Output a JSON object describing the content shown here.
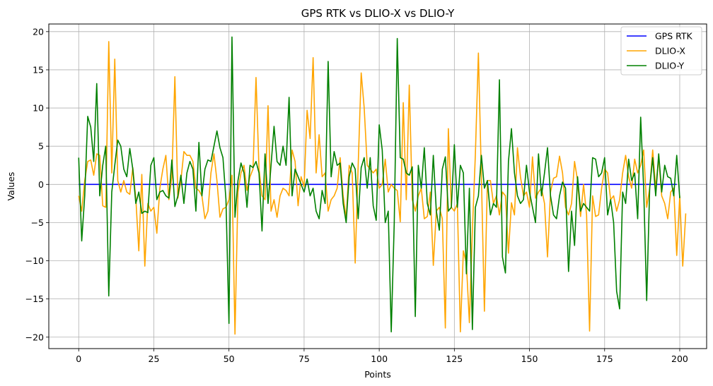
{
  "chart_data": {
    "type": "line",
    "title": "GPS RTK vs DLIO-X vs DLIO-Y",
    "xlabel": "Points",
    "ylabel": "Values",
    "xlim": [
      -9.95,
      208.95
    ],
    "ylim": [
      -21.5,
      21.0
    ],
    "xticks": [
      0,
      25,
      50,
      75,
      100,
      125,
      150,
      175,
      200
    ],
    "yticks": [
      -20,
      -15,
      -10,
      -5,
      0,
      5,
      10,
      15,
      20
    ],
    "grid": true,
    "legend_position": "top-right",
    "colors": {
      "gps_rtk": "#0000ff",
      "dlio_x": "#ffa500",
      "dlio_y": "#008000",
      "grid": "#b0b0b0"
    },
    "series": [
      {
        "name": "GPS RTK",
        "color": "#0000ff",
        "y": [
          0,
          0,
          0,
          0,
          0,
          0,
          0,
          0,
          0,
          0,
          0,
          0,
          0,
          0,
          0,
          0,
          0,
          0,
          0,
          0,
          0,
          0,
          0,
          0,
          0,
          0,
          0,
          0,
          0,
          0,
          0,
          0,
          0,
          0,
          0,
          0,
          0,
          0,
          0,
          0,
          0,
          0,
          0,
          0,
          0,
          0,
          0,
          0,
          0,
          0,
          0,
          0,
          0,
          0,
          0,
          0,
          0,
          0,
          0,
          0,
          0,
          0,
          0,
          0,
          0,
          0,
          0,
          0,
          0,
          0,
          0,
          0,
          0,
          0,
          0,
          0,
          0,
          0,
          0,
          0,
          0,
          0,
          0,
          0,
          0,
          0,
          0,
          0,
          0,
          0,
          0,
          0,
          0,
          0,
          0,
          0,
          0,
          0,
          0,
          0,
          0,
          0,
          0,
          0,
          0,
          0,
          0,
          0,
          0,
          0,
          0,
          0,
          0,
          0,
          0,
          0,
          0,
          0,
          0,
          0,
          0,
          0,
          0,
          0,
          0,
          0,
          0,
          0,
          0,
          0,
          0,
          0,
          0,
          0,
          0,
          0,
          0,
          0,
          0,
          0,
          0,
          0,
          0,
          0,
          0,
          0,
          0,
          0,
          0,
          0,
          0,
          0,
          0,
          0,
          0,
          0,
          0,
          0,
          0,
          0,
          0,
          0,
          0,
          0,
          0,
          0,
          0,
          0,
          0,
          0,
          0,
          0,
          0,
          0,
          0,
          0,
          0,
          0,
          0,
          0,
          0,
          0,
          0,
          0,
          0,
          0,
          0,
          0,
          0,
          0,
          0,
          0,
          0,
          0,
          0,
          0,
          0,
          0,
          0,
          0
        ]
      },
      {
        "name": "DLIO-X",
        "color": "#ffa500",
        "y": [
          -1.5,
          -3.5,
          0.5,
          3.0,
          3.2,
          1.2,
          4.0,
          3.8,
          -2.8,
          -3.0,
          18.7,
          1.5,
          16.4,
          0.5,
          -1.0,
          0.5,
          -1.0,
          -1.3,
          2.2,
          -1.8,
          -8.7,
          1.3,
          -10.7,
          -2.5,
          -3.5,
          -3.0,
          -6.4,
          -0.5,
          2.0,
          3.8,
          -2.0,
          1.0,
          14.1,
          -1.8,
          0.5,
          4.3,
          3.8,
          3.8,
          3.0,
          -0.5,
          -0.8,
          -1.5,
          -4.5,
          -3.5,
          1.5,
          4.0,
          0.5,
          -4.3,
          -3.2,
          -3.0,
          -2.0,
          1.2,
          -19.6,
          -1.0,
          1.5,
          2.5,
          -0.8,
          1.0,
          2.0,
          14.0,
          2.0,
          -1.5,
          -2.0,
          10.3,
          -3.5,
          -2.0,
          -4.3,
          -1.5,
          -0.5,
          -0.8,
          -1.5,
          4.5,
          3.0,
          -2.8,
          1.0,
          -0.3,
          9.7,
          6.0,
          16.6,
          1.5,
          6.5,
          1.0,
          1.5,
          -3.5,
          -2.0,
          -1.5,
          -0.5,
          3.5,
          -1.5,
          -4.5,
          2.5,
          1.5,
          -10.3,
          2.5,
          14.6,
          10.0,
          2.5,
          2.0,
          1.5,
          2.0,
          -0.5,
          0.0,
          3.3,
          -1.0,
          0.0,
          -0.5,
          -0.8,
          -4.9,
          10.7,
          -2.0,
          13.0,
          -2.0,
          -3.5,
          -1.5,
          -0.5,
          -4.5,
          -4.2,
          -1.0,
          -10.6,
          -3.5,
          -3.0,
          -4.5,
          -18.8,
          7.3,
          -3.0,
          -3.5,
          -2.5,
          -19.3,
          -8.7,
          -10.3,
          -18.1,
          -6.0,
          4.0,
          17.2,
          1.0,
          -16.6,
          0.5,
          0.5,
          -2.5,
          -1.5,
          -4.0,
          -1.0,
          -1.5,
          -9.0,
          -2.4,
          -4.0,
          4.8,
          1.0,
          -1.5,
          -1.0,
          -3.0,
          3.6,
          -1.8,
          -1.0,
          -0.5,
          -2.5,
          -9.5,
          -1.0,
          0.8,
          1.0,
          3.7,
          1.5,
          -3.0,
          -4.0,
          -2.5,
          3.0,
          0.5,
          -4.2,
          0.0,
          -4.0,
          -19.2,
          -1.5,
          -4.2,
          -4.0,
          -0.5,
          2.0,
          1.5,
          -2.0,
          -1.5,
          -3.5,
          -2.0,
          1.5,
          3.8,
          1.0,
          -0.5,
          3.3,
          1.5,
          2.5,
          4.5,
          -3.0,
          -0.5,
          4.5,
          -0.5,
          3.5,
          -1.5,
          -2.5,
          -4.5,
          -1.0,
          -0.5,
          -9.3,
          -1.5,
          -10.7,
          -3.8
        ]
      },
      {
        "name": "DLIO-Y",
        "color": "#008000",
        "y": [
          3.5,
          -7.4,
          -1.5,
          8.9,
          7.5,
          3.0,
          13.2,
          -1.5,
          2.5,
          5.0,
          -14.6,
          -1.0,
          2.5,
          5.8,
          5.0,
          2.0,
          1.0,
          4.7,
          2.0,
          -2.5,
          -1.0,
          -3.8,
          -3.5,
          -3.7,
          2.5,
          3.5,
          -2.0,
          -1.0,
          -0.8,
          -1.5,
          -1.8,
          3.2,
          -2.9,
          -1.5,
          1.2,
          -2.5,
          1.5,
          3.0,
          2.0,
          -3.5,
          5.5,
          -1.5,
          2.0,
          3.2,
          3.0,
          5.0,
          7.0,
          4.8,
          3.5,
          -2.0,
          -18.2,
          19.3,
          -4.3,
          0.5,
          2.8,
          1.5,
          -3.0,
          2.5,
          2.2,
          3.0,
          1.5,
          -6.1,
          4.0,
          -2.5,
          2.5,
          7.6,
          3.0,
          2.5,
          5.0,
          2.5,
          11.4,
          -1.5,
          2.0,
          1.0,
          0.0,
          -1.0,
          0.7,
          -1.5,
          -0.5,
          -3.5,
          -4.5,
          -0.8,
          -2.5,
          16.1,
          1.0,
          4.3,
          2.5,
          2.8,
          -2.5,
          -5.0,
          1.0,
          2.8,
          2.0,
          -4.5,
          2.2,
          3.5,
          -0.5,
          3.5,
          -2.8,
          -4.7,
          7.8,
          4.5,
          -5.0,
          -3.5,
          -19.3,
          -5.0,
          19.1,
          3.5,
          3.3,
          1.5,
          1.2,
          2.3,
          -17.3,
          2.5,
          -0.5,
          4.8,
          -2.5,
          -4.0,
          3.8,
          -3.5,
          -6.0,
          2.0,
          3.6,
          -3.5,
          -3.0,
          5.2,
          -3.0,
          2.5,
          1.5,
          -11.7,
          -0.5,
          -19.0,
          -3.0,
          -1.5,
          3.8,
          -0.5,
          0.5,
          -4.0,
          -2.5,
          -3.0,
          13.7,
          -9.5,
          -11.6,
          3.0,
          7.3,
          1.5,
          -1.5,
          -2.5,
          -2.0,
          2.5,
          -1.0,
          -3.0,
          -5.0,
          4.0,
          -1.5,
          1.5,
          4.8,
          -1.5,
          -4.0,
          -4.5,
          -1.5,
          0.3,
          -0.5,
          -11.4,
          -3.5,
          -8.0,
          1.0,
          -3.5,
          -2.5,
          -3.0,
          -3.5,
          3.5,
          3.3,
          1.0,
          1.5,
          3.5,
          -4.0,
          -2.0,
          -5.0,
          -14.0,
          -16.3,
          -1.0,
          -2.5,
          3.3,
          0.5,
          1.5,
          -4.5,
          8.8,
          -0.5,
          -15.2,
          -0.5,
          3.5,
          -1.5,
          4.0,
          -1.0,
          2.5,
          1.0,
          0.8,
          -1.5,
          3.8,
          -1.8
        ]
      }
    ]
  }
}
